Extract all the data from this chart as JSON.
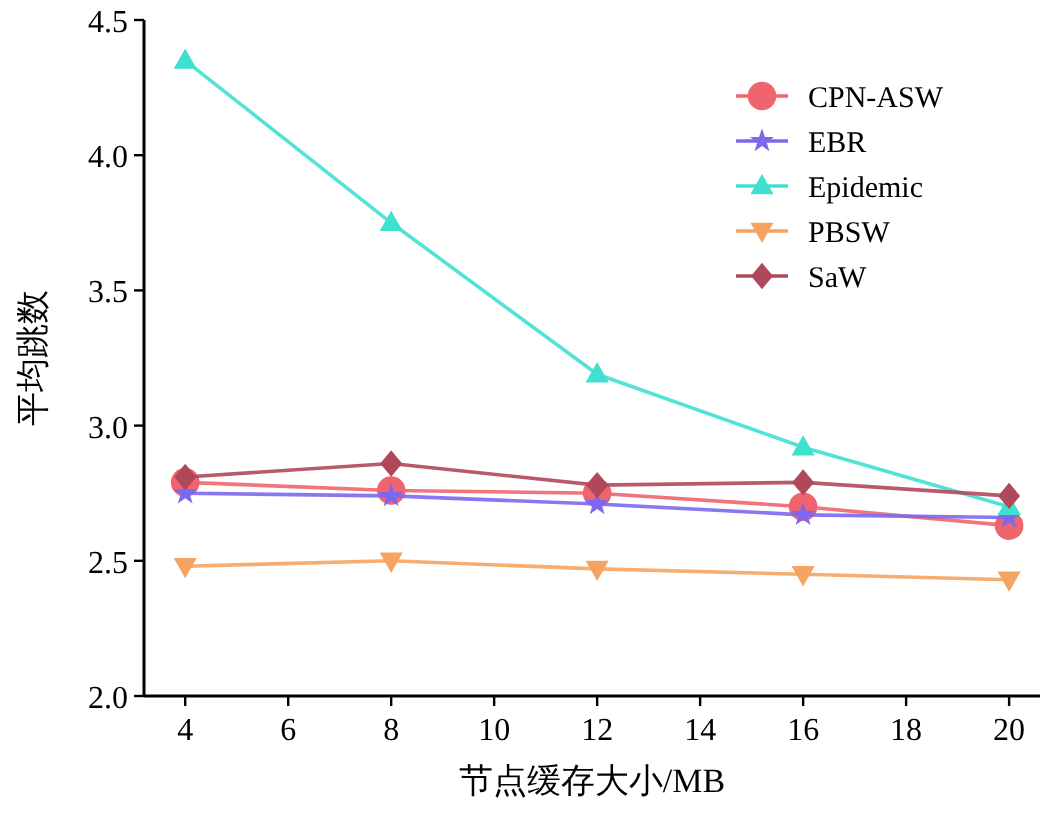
{
  "chart_data": {
    "type": "line",
    "xlabel": "节点缓存大小/MB",
    "ylabel": "平均跳数",
    "x": [
      4,
      8,
      12,
      16,
      20
    ],
    "xlim": [
      3.2,
      20.6
    ],
    "xticks": [
      4,
      6,
      8,
      10,
      12,
      14,
      16,
      18,
      20
    ],
    "ylim": [
      2.0,
      4.5
    ],
    "yticks": [
      {
        "value": 2.0,
        "label": "2.0"
      },
      {
        "value": 2.5,
        "label": "2.5"
      },
      {
        "value": 3.0,
        "label": "3.0"
      },
      {
        "value": 3.5,
        "label": "3.5"
      },
      {
        "value": 4.0,
        "label": "4.0"
      },
      {
        "value": 4.5,
        "label": "4.5"
      }
    ],
    "grid": false,
    "legend": "top right",
    "line_style": "solid",
    "series": [
      {
        "name": "CPN-ASW",
        "color": "#f0646e",
        "marker": "circle",
        "values": [
          2.79,
          2.76,
          2.75,
          2.7,
          2.63
        ]
      },
      {
        "name": "EBR",
        "color": "#7b68ee",
        "marker": "star",
        "values": [
          2.75,
          2.74,
          2.71,
          2.67,
          2.66
        ]
      },
      {
        "name": "Epidemic",
        "color": "#40e0d0",
        "marker": "triangle",
        "values": [
          4.35,
          3.75,
          3.19,
          2.92,
          2.7
        ]
      },
      {
        "name": "PBSW",
        "color": "#f4a460",
        "marker": "triangle-down",
        "values": [
          2.48,
          2.5,
          2.47,
          2.45,
          2.43
        ]
      },
      {
        "name": "SaW",
        "color": "#b0485c",
        "marker": "diamond",
        "values": [
          2.81,
          2.86,
          2.78,
          2.79,
          2.74
        ]
      }
    ]
  }
}
